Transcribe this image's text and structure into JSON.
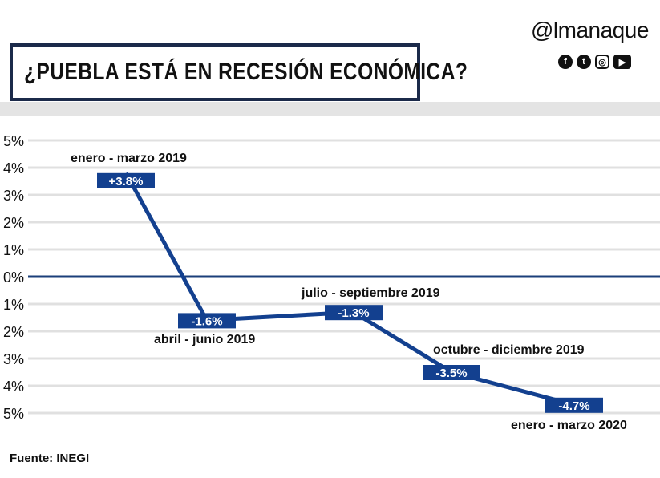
{
  "header": {
    "title": "¿PUEBLA ESTÁ EN RECESIÓN ECONÓMICA?",
    "logo": "@lmanaque",
    "social_icons": [
      "facebook-icon",
      "twitter-icon",
      "instagram-icon",
      "youtube-icon"
    ]
  },
  "source": "Fuente: INEGI",
  "colors": {
    "line": "#13408f",
    "zero_line": "#1b3f7a",
    "grid": "#e0e0e0"
  },
  "chart_data": {
    "type": "line",
    "categories": [
      "enero - marzo 2019",
      "abril - junio 2019",
      "julio - septiembre 2019",
      "octubre - diciembre 2019",
      "enero - marzo 2020"
    ],
    "values": [
      3.8,
      -1.6,
      -1.3,
      -3.5,
      -4.7
    ],
    "data_labels": [
      "+3.8%",
      "-1.6%",
      "-1.3%",
      "-3.5%",
      "-4.7%"
    ],
    "ylim": [
      -5,
      5
    ],
    "yticks": [
      "5%",
      "4%",
      "3%",
      "2%",
      "1%",
      "0%",
      "1%",
      "2%",
      "3%",
      "4%",
      "5%"
    ],
    "grid": true
  }
}
